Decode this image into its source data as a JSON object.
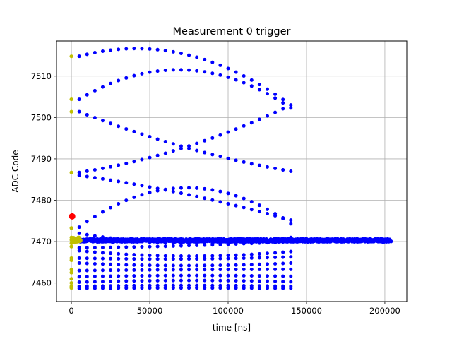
{
  "chart_data": {
    "type": "scatter",
    "title": "Measurement 0 trigger",
    "xlabel": "time [ns]",
    "ylabel": "ADC Code",
    "xlim": [
      -9500,
      214000
    ],
    "ylim": [
      7455.5,
      7518.5
    ],
    "x_ticks": [
      0,
      50000,
      100000,
      150000,
      200000
    ],
    "y_ticks": [
      7460,
      7470,
      7480,
      7490,
      7500,
      7510
    ],
    "grid": true,
    "colors": {
      "series": "#0000ff",
      "start": "#bfbf00",
      "trigger": "#ff0000"
    },
    "lines": {
      "x_start": 5000,
      "x_end": 140000,
      "step": 5000,
      "tracks": [
        [
          7514.8,
          7515.3,
          7503.0
        ],
        [
          7504.4,
          7511.5,
          7502.3
        ],
        [
          7501.4,
          7492.8,
          7487.0
        ],
        [
          7486.7,
          7492.8,
          7503.0
        ],
        [
          7486.0,
          7481.5,
          7475.2
        ],
        [
          7473.5,
          7483.0,
          7474.3
        ],
        [
          7472.0,
          7469.5,
          7471.0
        ],
        [
          7468.5,
          7469.0,
          7470.0
        ],
        [
          7467.8,
          7466.5,
          7467.6
        ],
        [
          7466.0,
          7465.8,
          7466.3
        ],
        [
          7464.8,
          7464.2,
          7464.8
        ],
        [
          7463.0,
          7463.2,
          7463.3
        ],
        [
          7461.5,
          7461.8,
          7461.6
        ],
        [
          7460.2,
          7460.6,
          7460.3
        ],
        [
          7459.2,
          7459.4,
          7459.2
        ],
        [
          7458.7,
          7458.8,
          7458.7
        ]
      ]
    },
    "dense_band": {
      "x_start": 5000,
      "x_end": 204000,
      "y_center": 7470.3,
      "spread": 0.7,
      "count": 1400
    },
    "start_points": [
      7514.8,
      7504.4,
      7501.4,
      7486.7,
      7473.3,
      7471.0,
      7470.4,
      7469.6,
      7468.8,
      7466.0,
      7465.5,
      7463.2,
      7462.5,
      7461.0,
      7460.0,
      7459.2,
      7458.8
    ],
    "start_cluster": {
      "x": 3000,
      "y": 7470.4
    },
    "trigger_point": {
      "x": 500,
      "y": 7476.1
    }
  }
}
